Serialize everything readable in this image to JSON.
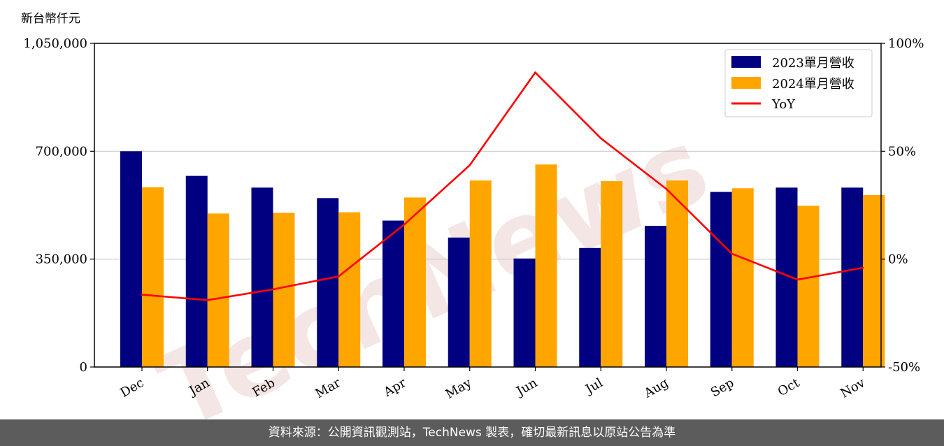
{
  "chart_data": {
    "type": "bar",
    "unit_label": "新台幣仟元",
    "categories": [
      "Dec",
      "Jan",
      "Feb",
      "Mar",
      "Apr",
      "May",
      "Jun",
      "Jul",
      "Aug",
      "Sep",
      "Oct",
      "Nov"
    ],
    "series": [
      {
        "name": "2023單月營收",
        "color": "#000080",
        "values": [
          700000,
          620000,
          582000,
          548000,
          475000,
          420000,
          352000,
          386000,
          458000,
          568000,
          582000,
          582000
        ]
      },
      {
        "name": "2024單月營收",
        "color": "#ffa500",
        "values": [
          583000,
          498000,
          500000,
          502000,
          550000,
          605000,
          657000,
          603000,
          605000,
          580000,
          523000,
          558000
        ]
      }
    ],
    "line_series": {
      "name": "YoY",
      "color": "#ff0000",
      "axis": "right",
      "values": [
        -16.5,
        -19,
        -14,
        -8,
        16,
        43.5,
        86.5,
        56,
        32.5,
        2.5,
        -9.5,
        -4
      ]
    },
    "y_left": {
      "min": 0,
      "max": 1050000,
      "ticks": [
        0,
        350000,
        700000,
        1050000
      ],
      "tick_labels": [
        "0",
        "350,000",
        "700,000",
        "1,050,000"
      ]
    },
    "y_right": {
      "min": -50,
      "max": 100,
      "ticks": [
        -50,
        0,
        50,
        100
      ],
      "tick_labels": [
        "-50%",
        "0%",
        "50%",
        "100%"
      ]
    },
    "grid": true,
    "legend_position": "top-right",
    "watermark": "TechNews"
  },
  "footer": {
    "source_text": "資料來源：公開資訊觀測站，TechNews 製表，確切最新訊息以原站公告為準"
  }
}
